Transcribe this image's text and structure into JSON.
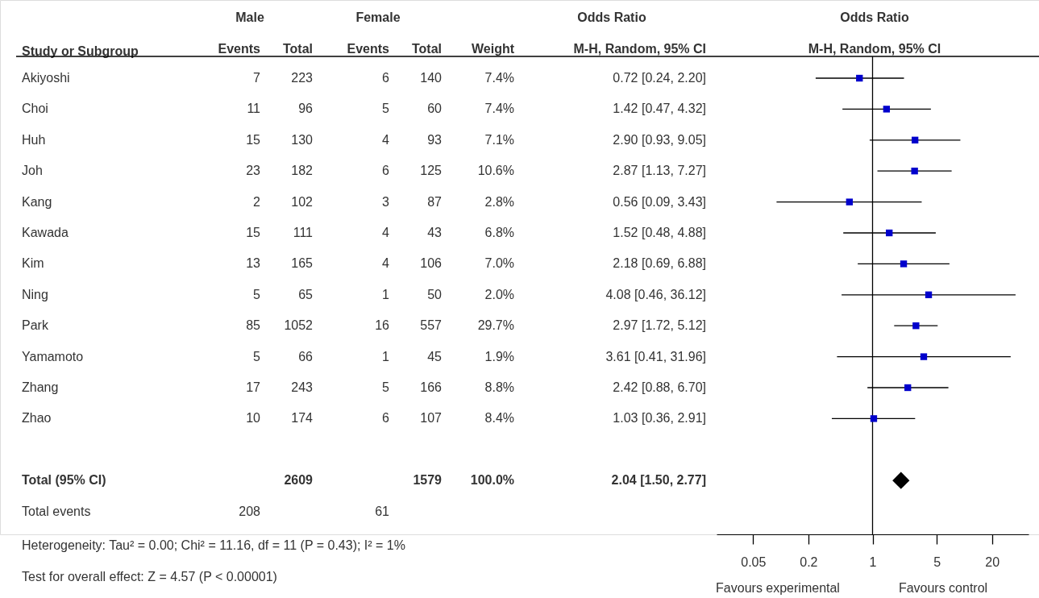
{
  "chart_data": [
    {
      "type": "other",
      "data_labels": true,
      "categories": [
        "Akiyoshi",
        "Choi",
        "Huh",
        "Joh",
        "Kang",
        "Kawada",
        "Kim",
        "Ning",
        "Park",
        "Yamamoto",
        "Zhang",
        "Zhao",
        null,
        "Total (95% CI)",
        "Total events"
      ],
      "series": [
        {
          "name": "Events",
          "values": [
            7,
            11,
            15,
            23,
            2,
            15,
            13,
            5,
            85,
            5,
            17,
            10,
            null,
            null,
            208
          ]
        },
        {
          "name": "Total",
          "values": [
            223,
            96,
            130,
            182,
            102,
            111,
            165,
            65,
            1052,
            66,
            243,
            174,
            null,
            2609,
            null
          ]
        },
        {
          "name": "Events",
          "values": [
            6,
            5,
            4,
            6,
            3,
            4,
            4,
            1,
            16,
            1,
            5,
            6,
            null,
            null,
            61
          ]
        },
        {
          "name": "Total",
          "values": [
            140,
            60,
            93,
            125,
            87,
            43,
            106,
            50,
            557,
            45,
            166,
            107,
            null,
            1579,
            null
          ]
        },
        {
          "name": "Weight",
          "values": [
            7.4,
            7.4,
            7.1,
            10.6,
            2.8,
            6.8,
            7.0,
            2.0,
            29.7,
            1.9,
            8.8,
            8.4,
            null,
            100.0,
            null
          ],
          "value_labels": [
            "7.4%",
            "7.4%",
            "7.1%",
            "10.6%",
            "2.8%",
            "6.8%",
            "7.0%",
            "2.0%",
            "29.7%",
            "1.9%",
            "8.8%",
            "8.4%",
            null,
            "100.0%",
            null
          ]
        },
        {
          "name": "M-H, Random, 95% CI",
          "values": [
            0.72,
            1.42,
            2.9,
            2.87,
            0.56,
            1.52,
            2.18,
            4.08,
            2.97,
            3.61,
            2.42,
            1.03,
            null,
            2.04,
            null
          ],
          "value_labels": [
            "0.72 [0.24, 2.20]",
            "1.42 [0.47, 4.32]",
            "2.90 [0.93, 9.05]",
            "2.87 [1.13, 7.27]",
            "0.56 [0.09, 3.43]",
            "1.52 [0.48, 4.88]",
            "2.18 [0.69, 6.88]",
            "4.08 [0.46, 36.12]",
            "2.97 [1.72, 5.12]",
            "3.61 [0.41, 31.96]",
            "2.42 [0.88, 6.70]",
            "1.03 [0.36, 2.91]",
            null,
            "2.04 [1.50, 2.77]",
            null
          ]
        }
      ],
      "annotations": [
        "Male",
        "Female",
        "Odds Ratio",
        "Study or Subgroup",
        "Heterogeneity: Tau² = 0.00; Chi² = 11.16, df = 11 (P = 0.43); I² = 1%",
        "Test for overall effect: Z = 4.57 (P < 0.00001)"
      ]
    },
    {
      "type": "scatter",
      "title": "Odds Ratio",
      "subtitle": "M-H, Random, 95% CI",
      "categories": [
        null,
        null,
        null,
        null,
        null,
        null,
        null,
        null,
        null,
        null,
        null,
        null,
        null,
        null,
        null
      ],
      "series": [
        {
          "color": "#0000cc",
          "marker": "square",
          "values": [
            0.72,
            1.42,
            2.9,
            2.87,
            0.56,
            1.52,
            2.18,
            4.08,
            2.97,
            3.61,
            2.42,
            1.03,
            null,
            null,
            null
          ],
          "errors": [
            [
              0.24,
              2.2
            ],
            [
              0.47,
              4.32
            ],
            [
              0.93,
              9.05
            ],
            [
              1.13,
              7.27
            ],
            [
              0.09,
              3.43
            ],
            [
              0.48,
              4.88
            ],
            [
              0.69,
              6.88
            ],
            [
              0.46,
              36.12
            ],
            [
              1.72,
              5.12
            ],
            [
              0.41,
              31.96
            ],
            [
              0.88,
              6.7
            ],
            [
              0.36,
              2.91
            ],
            null,
            null,
            null
          ]
        },
        {
          "color": "#000000",
          "marker": "diamond",
          "values": [
            null,
            null,
            null,
            null,
            null,
            null,
            null,
            null,
            null,
            null,
            null,
            null,
            null,
            2.04,
            null
          ]
        }
      ],
      "orientation": "horizontal",
      "log": "x",
      "xlim": [
        0.02,
        50
      ],
      "xticks": [
        0.05,
        0.2,
        1,
        5,
        20
      ],
      "ref_lines": [
        {
          "axis": "x",
          "value": 1,
          "color": "#000000"
        }
      ],
      "annotations": [
        "Favours experimental",
        "Favours control"
      ],
      "grid": false,
      "tick_labels": "x"
    }
  ]
}
